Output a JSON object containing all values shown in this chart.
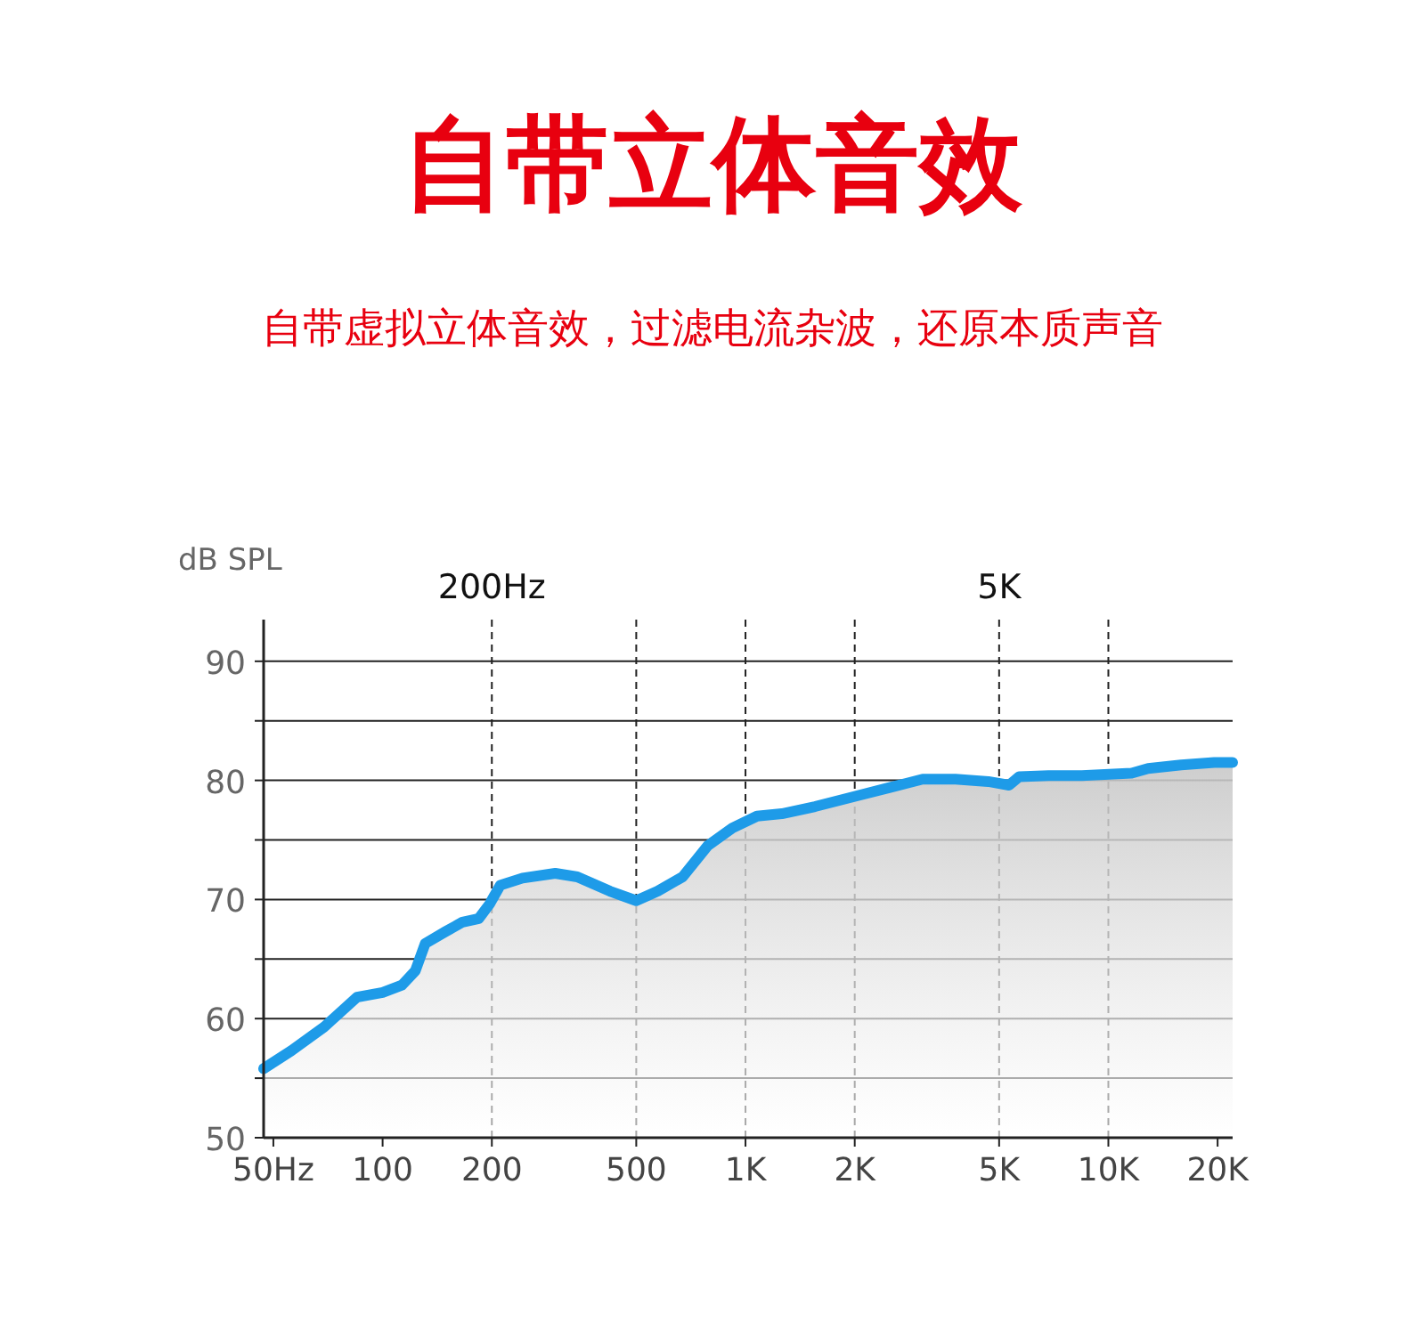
{
  "chart_data": {
    "type": "area",
    "title": "自带立体音效",
    "subtitle": "自带虚拟立体音效，过滤电流杂波，还原本质声音",
    "ylabel": "dB SPL",
    "color": "#1e9be8",
    "grid": "y",
    "log": "x",
    "x": [
      47,
      56,
      69,
      85,
      100,
      113,
      123,
      131,
      149,
      166,
      184,
      197,
      211,
      243,
      299,
      344,
      423,
      500,
      573,
      671,
      786,
      920,
      1076,
      1260,
      1554,
      2028,
      2498,
      3077,
      3790,
      4668,
      5325,
      5671,
      6847,
      8451,
      11585,
      12866,
      15874,
      19580,
      22000
    ],
    "values": [
      55.8,
      57.3,
      59.3,
      61.8,
      62.2,
      62.8,
      64.0,
      66.3,
      67.3,
      68.1,
      68.4,
      69.6,
      71.2,
      71.8,
      72.2,
      71.9,
      70.7,
      69.9,
      70.7,
      71.9,
      74.5,
      76.0,
      77.0,
      77.2,
      77.8,
      78.7,
      79.4,
      80.1,
      80.1,
      79.9,
      79.6,
      80.3,
      80.4,
      80.4,
      80.6,
      81.0,
      81.3,
      81.5,
      81.5
    ],
    "xlim": [
      47,
      22000
    ],
    "xticks": [
      {
        "value": 50,
        "label": "50Hz"
      },
      100,
      200,
      500,
      {
        "value": 1000,
        "label": "1K"
      },
      {
        "value": 2000,
        "label": "2K"
      },
      {
        "value": 5000,
        "label": "5K"
      },
      {
        "value": 10000,
        "label": "10K"
      },
      {
        "value": 20000,
        "label": "20K"
      }
    ],
    "ylim": [
      50,
      93.5
    ],
    "yticks": [
      50,
      {
        "value": 55,
        "label": null
      },
      60,
      {
        "value": 65,
        "label": null
      },
      70,
      {
        "value": 75,
        "label": null
      },
      80,
      {
        "value": 85,
        "label": null
      },
      90
    ],
    "ref_lines": [
      {
        "axis": "x",
        "value": 200,
        "line_style": "dashed",
        "label": "200Hz"
      },
      {
        "axis": "x",
        "value": 500,
        "line_style": "dashed"
      },
      {
        "axis": "x",
        "value": 1000,
        "line_style": "dashed"
      },
      {
        "axis": "x",
        "value": 2000,
        "line_style": "dashed"
      },
      {
        "axis": "x",
        "value": 5000,
        "line_style": "dashed",
        "label": "5K"
      },
      {
        "axis": "x",
        "value": 10000,
        "line_style": "dashed"
      }
    ]
  }
}
